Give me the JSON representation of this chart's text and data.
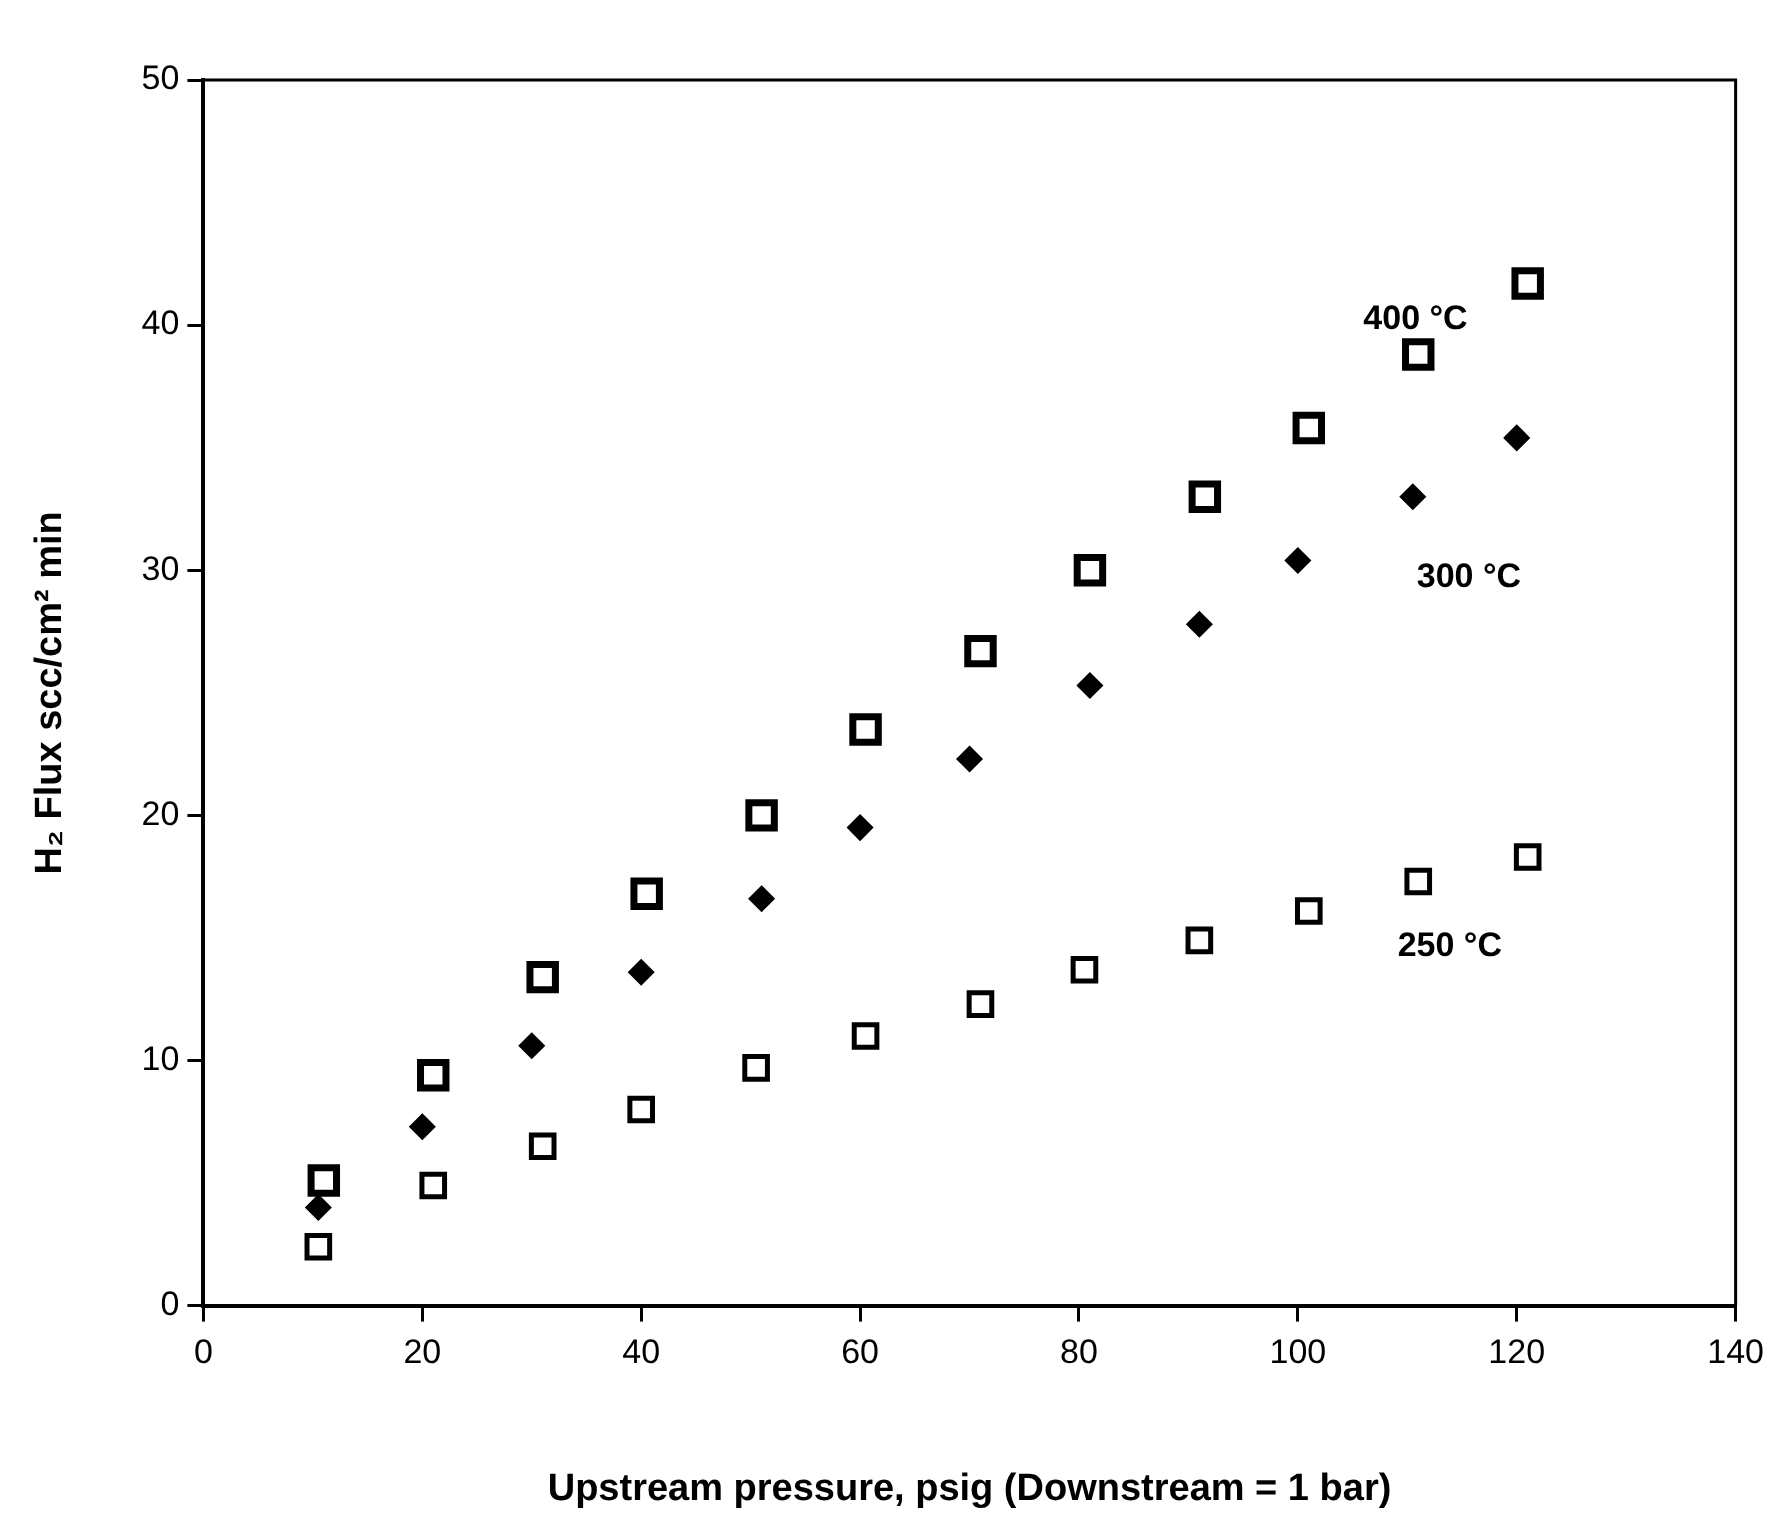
{
  "chart_data": {
    "type": "scatter",
    "xlabel": "Upstream pressure, psig (Downstream = 1 bar)",
    "ylabel": "H₂ Flux scc/cm² min",
    "xlim": [
      0,
      140
    ],
    "xticks": [
      0,
      20,
      40,
      60,
      80,
      100,
      120,
      140
    ],
    "ylim": [
      0,
      50
    ],
    "yticks": [
      0,
      10,
      20,
      30,
      40,
      50
    ],
    "grid": false,
    "legend": false,
    "series": [
      {
        "name": "400 °C",
        "color": "#000000",
        "marker": "square",
        "x": [
          11,
          21,
          31,
          40.5,
          51,
          60.5,
          71,
          81,
          91.5,
          101,
          111,
          121
        ],
        "values": [
          5.1,
          9.4,
          13.4,
          16.8,
          20,
          23.5,
          26.7,
          30,
          33,
          35.8,
          38.8,
          41.7
        ]
      },
      {
        "name": "300 °C",
        "color": "#000000",
        "marker": "diamond",
        "x": [
          10.5,
          20,
          30,
          40,
          51,
          60,
          70,
          81,
          91,
          100,
          110.5,
          120
        ],
        "values": [
          4,
          7.3,
          10.6,
          13.6,
          16.6,
          19.5,
          22.3,
          25.3,
          27.8,
          30.4,
          33,
          35.4
        ]
      },
      {
        "name": "250 °C",
        "color": "#000000",
        "marker": "square",
        "x": [
          10.5,
          21,
          31,
          40,
          50.5,
          60.5,
          71,
          80.5,
          91,
          101,
          111,
          121
        ],
        "values": [
          2.4,
          4.9,
          6.5,
          8,
          9.7,
          11,
          12.3,
          13.7,
          14.9,
          16.1,
          17.3,
          18.3
        ]
      }
    ]
  }
}
